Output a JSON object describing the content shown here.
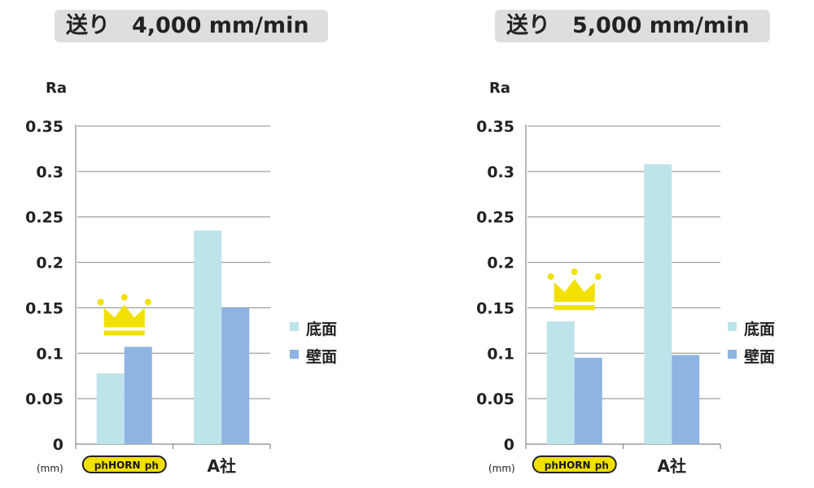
{
  "colors": {
    "bottom": "#bde4ea",
    "wall": "#8db4e3",
    "crown": "#f1e000",
    "grid": "#888888",
    "title_bg": "#dedede"
  },
  "logo": {
    "text": "HORN",
    "icon": "horn-logo"
  },
  "legend_labels": [
    "底面",
    "壁面"
  ],
  "chart_data": [
    {
      "type": "bar",
      "title": "送り　4,000 mm/min",
      "ylabel": "Ra",
      "unit": "(mm)",
      "ylim": [
        0,
        0.35
      ],
      "yticks": [
        "0",
        "0.05",
        "0.1",
        "0.15",
        "0.2",
        "0.25",
        "0.3",
        "0.35"
      ],
      "categories": [
        "HORN",
        "A社"
      ],
      "series": [
        {
          "name": "底面",
          "values": [
            0.078,
            0.235
          ]
        },
        {
          "name": "壁面",
          "values": [
            0.107,
            0.15
          ]
        }
      ],
      "legend_position": "right",
      "grid": true,
      "winner_icon": "crown-icon"
    },
    {
      "type": "bar",
      "title": "送り　5,000 mm/min",
      "ylabel": "Ra",
      "unit": "(mm)",
      "ylim": [
        0,
        0.35
      ],
      "yticks": [
        "0",
        "0.05",
        "0.1",
        "0.15",
        "0.2",
        "0.25",
        "0.3",
        "0.35"
      ],
      "categories": [
        "HORN",
        "A社"
      ],
      "series": [
        {
          "name": "底面",
          "values": [
            0.135,
            0.308
          ]
        },
        {
          "name": "壁面",
          "values": [
            0.095,
            0.098
          ]
        }
      ],
      "legend_position": "right",
      "grid": true,
      "winner_icon": "crown-icon"
    }
  ]
}
